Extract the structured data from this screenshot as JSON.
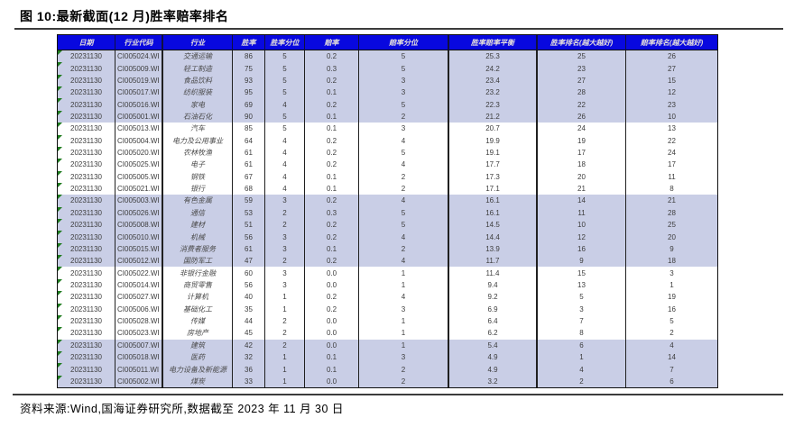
{
  "figure": {
    "title": "图 10:最新截面(12 月)胜率赔率排名",
    "source_note": "资料来源:Wind,国海证券研究所,数据截至 2023 年 11 月 30 日"
  },
  "colors": {
    "header_bg": "#0808df",
    "header_text": "#e2dcdc",
    "row_highlight": "#c9cee6",
    "row_plain": "#ffffff",
    "marker_green": "#1e7b1e"
  },
  "chart_data": {
    "type": "table",
    "columns": [
      "日期",
      "行业代码",
      "行业",
      "胜率",
      "胜率分位",
      "赔率",
      "赔率分位",
      "胜率赔率平衡",
      "胜率排名(越大越好)",
      "赔率排名(越大越好)"
    ],
    "rows": [
      [
        "20231130",
        "CI005024.WI",
        "交通运输",
        "86",
        "5",
        "0.2",
        "5",
        "25.3",
        "25",
        "26"
      ],
      [
        "20231130",
        "CI005009.WI",
        "轻工制造",
        "75",
        "5",
        "0.3",
        "5",
        "24.2",
        "23",
        "27"
      ],
      [
        "20231130",
        "CI005019.WI",
        "食品饮料",
        "93",
        "5",
        "0.2",
        "3",
        "23.4",
        "27",
        "15"
      ],
      [
        "20231130",
        "CI005017.WI",
        "纺织服装",
        "95",
        "5",
        "0.1",
        "3",
        "23.2",
        "28",
        "12"
      ],
      [
        "20231130",
        "CI005016.WI",
        "家电",
        "69",
        "4",
        "0.2",
        "5",
        "22.3",
        "22",
        "23"
      ],
      [
        "20231130",
        "CI005001.WI",
        "石油石化",
        "90",
        "5",
        "0.1",
        "2",
        "21.2",
        "26",
        "10"
      ],
      [
        "20231130",
        "CI005013.WI",
        "汽车",
        "85",
        "5",
        "0.1",
        "3",
        "20.7",
        "24",
        "13"
      ],
      [
        "20231130",
        "CI005004.WI",
        "电力及公用事业",
        "64",
        "4",
        "0.2",
        "4",
        "19.9",
        "19",
        "22"
      ],
      [
        "20231130",
        "CI005020.WI",
        "农林牧渔",
        "61",
        "4",
        "0.2",
        "5",
        "19.1",
        "17",
        "24"
      ],
      [
        "20231130",
        "CI005025.WI",
        "电子",
        "61",
        "4",
        "0.2",
        "4",
        "17.7",
        "18",
        "17"
      ],
      [
        "20231130",
        "CI005005.WI",
        "钢铁",
        "67",
        "4",
        "0.1",
        "2",
        "17.3",
        "20",
        "11"
      ],
      [
        "20231130",
        "CI005021.WI",
        "银行",
        "68",
        "4",
        "0.1",
        "2",
        "17.1",
        "21",
        "8"
      ],
      [
        "20231130",
        "CI005003.WI",
        "有色金属",
        "59",
        "3",
        "0.2",
        "4",
        "16.1",
        "14",
        "21"
      ],
      [
        "20231130",
        "CI005026.WI",
        "通信",
        "53",
        "2",
        "0.3",
        "5",
        "16.1",
        "11",
        "28"
      ],
      [
        "20231130",
        "CI005008.WI",
        "建材",
        "51",
        "2",
        "0.2",
        "5",
        "14.5",
        "10",
        "25"
      ],
      [
        "20231130",
        "CI005010.WI",
        "机械",
        "56",
        "3",
        "0.2",
        "4",
        "14.4",
        "12",
        "20"
      ],
      [
        "20231130",
        "CI005015.WI",
        "消费者服务",
        "61",
        "3",
        "0.1",
        "2",
        "13.9",
        "16",
        "9"
      ],
      [
        "20231130",
        "CI005012.WI",
        "国防军工",
        "47",
        "2",
        "0.2",
        "4",
        "11.7",
        "9",
        "18"
      ],
      [
        "20231130",
        "CI005022.WI",
        "非银行金融",
        "60",
        "3",
        "0.0",
        "1",
        "11.4",
        "15",
        "3"
      ],
      [
        "20231130",
        "CI005014.WI",
        "商贸零售",
        "56",
        "3",
        "0.0",
        "1",
        "9.4",
        "13",
        "1"
      ],
      [
        "20231130",
        "CI005027.WI",
        "计算机",
        "40",
        "1",
        "0.2",
        "4",
        "9.2",
        "5",
        "19"
      ],
      [
        "20231130",
        "CI005006.WI",
        "基础化工",
        "35",
        "1",
        "0.2",
        "3",
        "6.9",
        "3",
        "16"
      ],
      [
        "20231130",
        "CI005028.WI",
        "传媒",
        "44",
        "2",
        "0.0",
        "1",
        "6.4",
        "7",
        "5"
      ],
      [
        "20231130",
        "CI005023.WI",
        "房地产",
        "45",
        "2",
        "0.0",
        "1",
        "6.2",
        "8",
        "2"
      ],
      [
        "20231130",
        "CI005007.WI",
        "建筑",
        "42",
        "2",
        "0.0",
        "1",
        "5.4",
        "6",
        "4"
      ],
      [
        "20231130",
        "CI005018.WI",
        "医药",
        "32",
        "1",
        "0.1",
        "3",
        "4.9",
        "1",
        "14"
      ],
      [
        "20231130",
        "CI005011.WI",
        "电力设备及新能源",
        "36",
        "1",
        "0.1",
        "2",
        "4.9",
        "4",
        "7"
      ],
      [
        "20231130",
        "CI005002.WI",
        "煤炭",
        "33",
        "1",
        "0.0",
        "2",
        "3.2",
        "2",
        "6"
      ]
    ],
    "highlighted_row_indices": [
      0,
      1,
      2,
      3,
      4,
      5,
      12,
      13,
      14,
      15,
      16,
      17,
      24,
      25,
      26,
      27
    ]
  }
}
